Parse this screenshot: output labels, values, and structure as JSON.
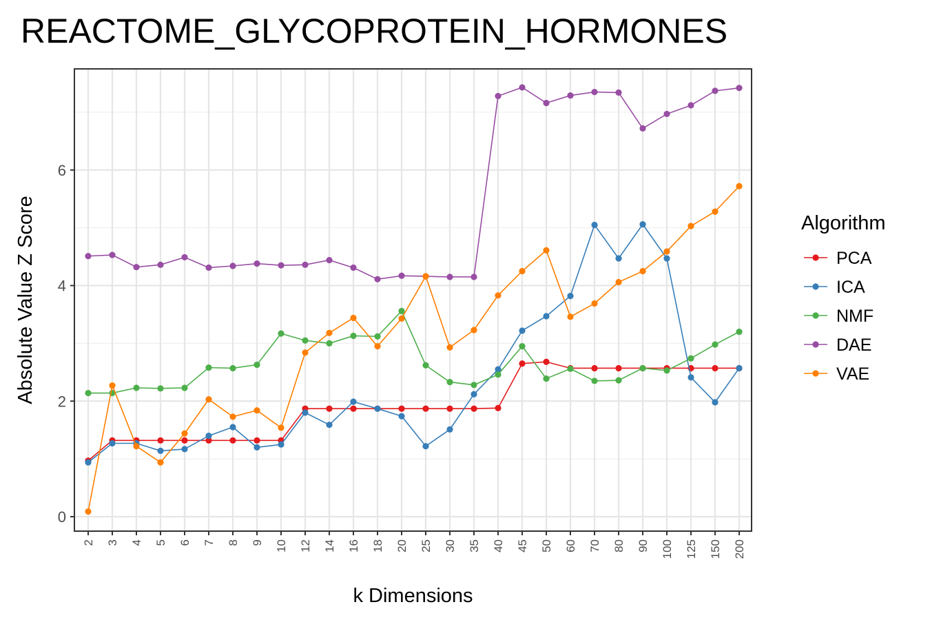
{
  "chart_data": {
    "type": "line",
    "title": "REACTOME_GLYCOPROTEIN_HORMONES",
    "xlabel": "k Dimensions",
    "ylabel": "Absolute Value Z Score",
    "categories": [
      "2",
      "3",
      "4",
      "5",
      "6",
      "7",
      "8",
      "9",
      "10",
      "12",
      "14",
      "16",
      "18",
      "20",
      "25",
      "30",
      "35",
      "40",
      "45",
      "50",
      "60",
      "70",
      "80",
      "90",
      "100",
      "125",
      "150",
      "200"
    ],
    "ylim": [
      -0.25,
      7.75
    ],
    "yticks": [
      0,
      2,
      4,
      6
    ],
    "grid": true,
    "legend": {
      "title": "Algorithm",
      "position": "right"
    },
    "series": [
      {
        "name": "PCA",
        "color": "#e41a1c",
        "values": [
          0.97,
          1.32,
          1.32,
          1.32,
          1.32,
          1.32,
          1.32,
          1.32,
          1.32,
          1.87,
          1.87,
          1.87,
          1.87,
          1.87,
          1.87,
          1.87,
          1.87,
          1.88,
          2.65,
          2.68,
          2.57,
          2.57,
          2.57,
          2.57,
          2.57,
          2.57,
          2.57,
          2.57
        ]
      },
      {
        "name": "ICA",
        "color": "#377eb8",
        "values": [
          0.94,
          1.27,
          1.27,
          1.14,
          1.17,
          1.4,
          1.55,
          1.2,
          1.25,
          1.8,
          1.59,
          1.99,
          1.87,
          1.74,
          1.22,
          1.51,
          2.12,
          2.55,
          3.22,
          3.47,
          3.82,
          5.05,
          4.47,
          5.06,
          4.47,
          2.41,
          1.98,
          2.57
        ]
      },
      {
        "name": "NMF",
        "color": "#4daf4a",
        "values": [
          2.14,
          2.14,
          2.23,
          2.22,
          2.23,
          2.58,
          2.57,
          2.63,
          3.17,
          3.05,
          3.0,
          3.13,
          3.12,
          3.56,
          2.62,
          2.33,
          2.28,
          2.46,
          2.95,
          2.39,
          2.56,
          2.35,
          2.36,
          2.57,
          2.53,
          2.74,
          2.98,
          3.2
        ]
      },
      {
        "name": "DAE",
        "color": "#984ea3",
        "values": [
          4.51,
          4.53,
          4.32,
          4.36,
          4.49,
          4.31,
          4.34,
          4.38,
          4.35,
          4.36,
          4.44,
          4.31,
          4.11,
          4.17,
          4.16,
          4.15,
          4.15,
          7.28,
          7.43,
          7.16,
          7.29,
          7.35,
          7.34,
          6.72,
          6.97,
          7.12,
          7.37,
          7.42
        ]
      },
      {
        "name": "VAE",
        "color": "#ff7f00",
        "values": [
          0.09,
          2.27,
          1.22,
          0.94,
          1.44,
          2.03,
          1.73,
          1.84,
          1.54,
          2.84,
          3.18,
          3.44,
          2.95,
          3.43,
          4.16,
          2.93,
          3.23,
          3.83,
          4.25,
          4.61,
          3.46,
          3.69,
          4.06,
          4.25,
          4.59,
          5.03,
          5.28,
          5.72
        ]
      }
    ]
  }
}
